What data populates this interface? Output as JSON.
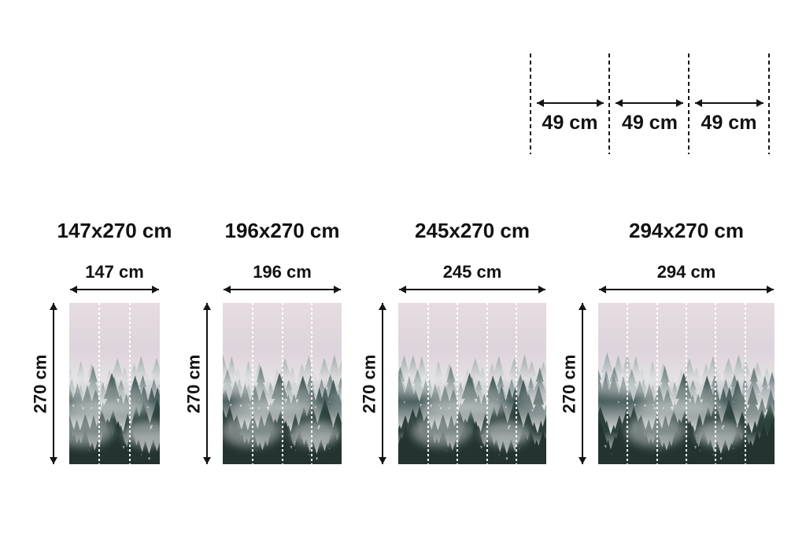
{
  "panel_diagram": {
    "segments": [
      {
        "label": "49 cm"
      },
      {
        "label": "49 cm"
      },
      {
        "label": "49 cm"
      }
    ]
  },
  "sizes": [
    {
      "title": "147x270 cm",
      "width_label": "147 cm",
      "height_label": "270 cm",
      "panels": 3
    },
    {
      "title": "196x270 cm",
      "width_label": "196 cm",
      "height_label": "270 cm",
      "panels": 4
    },
    {
      "title": "245x270 cm",
      "width_label": "245 cm",
      "height_label": "270 cm",
      "panels": 5
    },
    {
      "title": "294x270 cm",
      "width_label": "294 cm",
      "height_label": "270 cm",
      "panels": 6
    }
  ],
  "image": {
    "subject": "foggy mountain forest mural"
  },
  "colors": {
    "text": "#121212",
    "background": "#ffffff",
    "divider": "#ffffff",
    "sky": "#e3d9df",
    "far_trees": "#7b8d8e",
    "mid_trees": "#415755",
    "near_trees": "#2c403c"
  }
}
